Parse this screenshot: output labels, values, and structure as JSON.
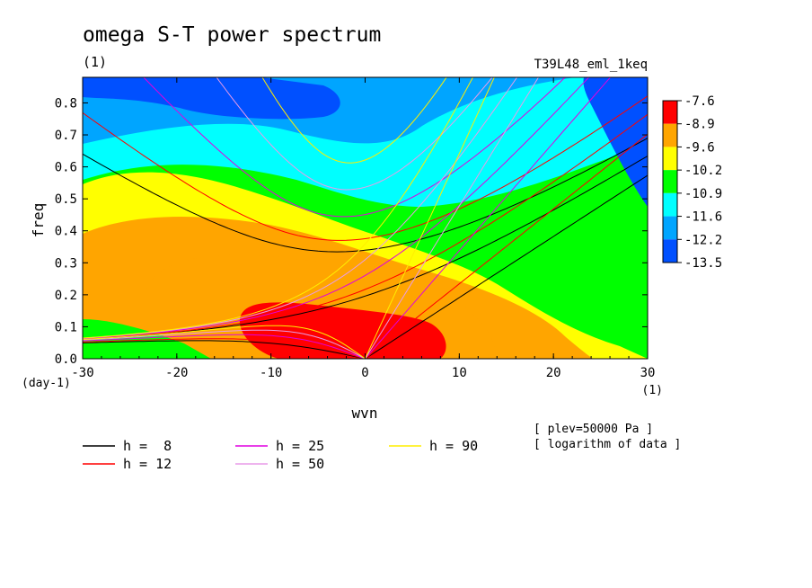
{
  "chart_data": {
    "type": "heatmap",
    "title": "omega S-T power spectrum",
    "subtitle_left": "(1)",
    "subtitle_right": "T39L48_eml_1keq",
    "xlabel": "wvn",
    "ylabel": "freq",
    "x_unit": "(1)",
    "y_unit": "(day-1)",
    "xlim": [
      -30,
      30
    ],
    "ylim": [
      0,
      0.88
    ],
    "xticks": [
      -30,
      -20,
      -10,
      0,
      10,
      20,
      30
    ],
    "yticks": [
      0.0,
      0.1,
      0.2,
      0.3,
      0.4,
      0.5,
      0.6,
      0.7,
      0.8
    ],
    "colorbar": {
      "levels": [
        "-7.6",
        "-8.9",
        "-9.6",
        "-10.2",
        "-10.9",
        "-11.6",
        "-12.2",
        "-13.5"
      ],
      "colors": [
        "#ff0000",
        "#ffa500",
        "#ffff00",
        "#00ff00",
        "#00ffff",
        "#00a5ff",
        "#0050ff"
      ]
    },
    "dispersion_curves": [
      {
        "label": "h =  8",
        "h": 8,
        "color": "#000000"
      },
      {
        "label": "h = 12",
        "h": 12,
        "color": "#ff0000"
      },
      {
        "label": "h = 25",
        "h": 25,
        "color": "#e000e0"
      },
      {
        "label": "h = 50",
        "h": 50,
        "color": "#e89ce8"
      },
      {
        "label": "h = 90",
        "h": 90,
        "color": "#ffee00"
      }
    ],
    "notes": [
      "[ plev=50000 Pa ]",
      "[ logarithm of data ]"
    ]
  }
}
